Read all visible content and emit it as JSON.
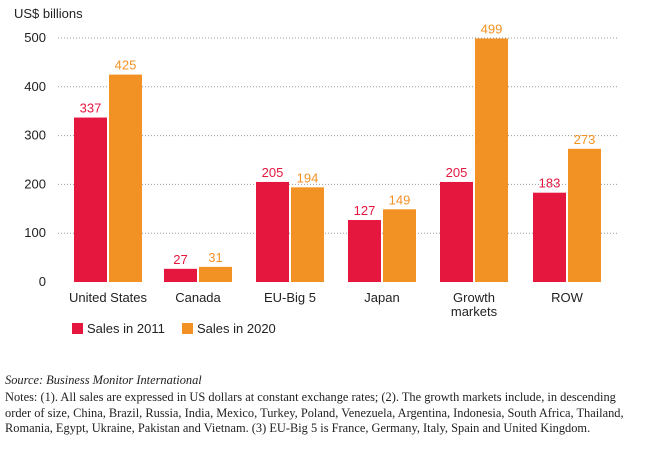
{
  "chart_data": {
    "type": "bar",
    "unit_label": "US$ billions",
    "categories": [
      "United States",
      "Canada",
      "EU-Big 5",
      "Japan",
      "Growth markets",
      "ROW"
    ],
    "category_lines": [
      [
        "United States"
      ],
      [
        "Canada"
      ],
      [
        "EU-Big 5"
      ],
      [
        "Japan"
      ],
      [
        "Growth",
        "markets"
      ],
      [
        "ROW"
      ]
    ],
    "series": [
      {
        "name": "Sales in 2011",
        "color": "#e5173f",
        "values": [
          337,
          27,
          205,
          127,
          205,
          183
        ]
      },
      {
        "name": "Sales in 2020",
        "color": "#f39224",
        "values": [
          425,
          31,
          194,
          149,
          499,
          273
        ]
      }
    ],
    "y_ticks": [
      0,
      100,
      200,
      300,
      400,
      500
    ],
    "ylim": [
      0,
      500
    ],
    "grid": "dotted horizontal",
    "legend_position": "bottom-left"
  },
  "footer": {
    "source": "Source: Business Monitor International",
    "notes": "Notes: (1). All sales are expressed in US dollars at constant exchange rates; (2). The growth markets include, in descending order of size, China, Brazil, Russia, India, Mexico, Turkey, Poland, Venezuela, Argentina, Indonesia, South Africa, Thailand, Romania, Egypt, Ukraine, Pakistan and Vietnam. (3) EU-Big 5 is France, Germany, Italy, Spain and United Kingdom."
  }
}
